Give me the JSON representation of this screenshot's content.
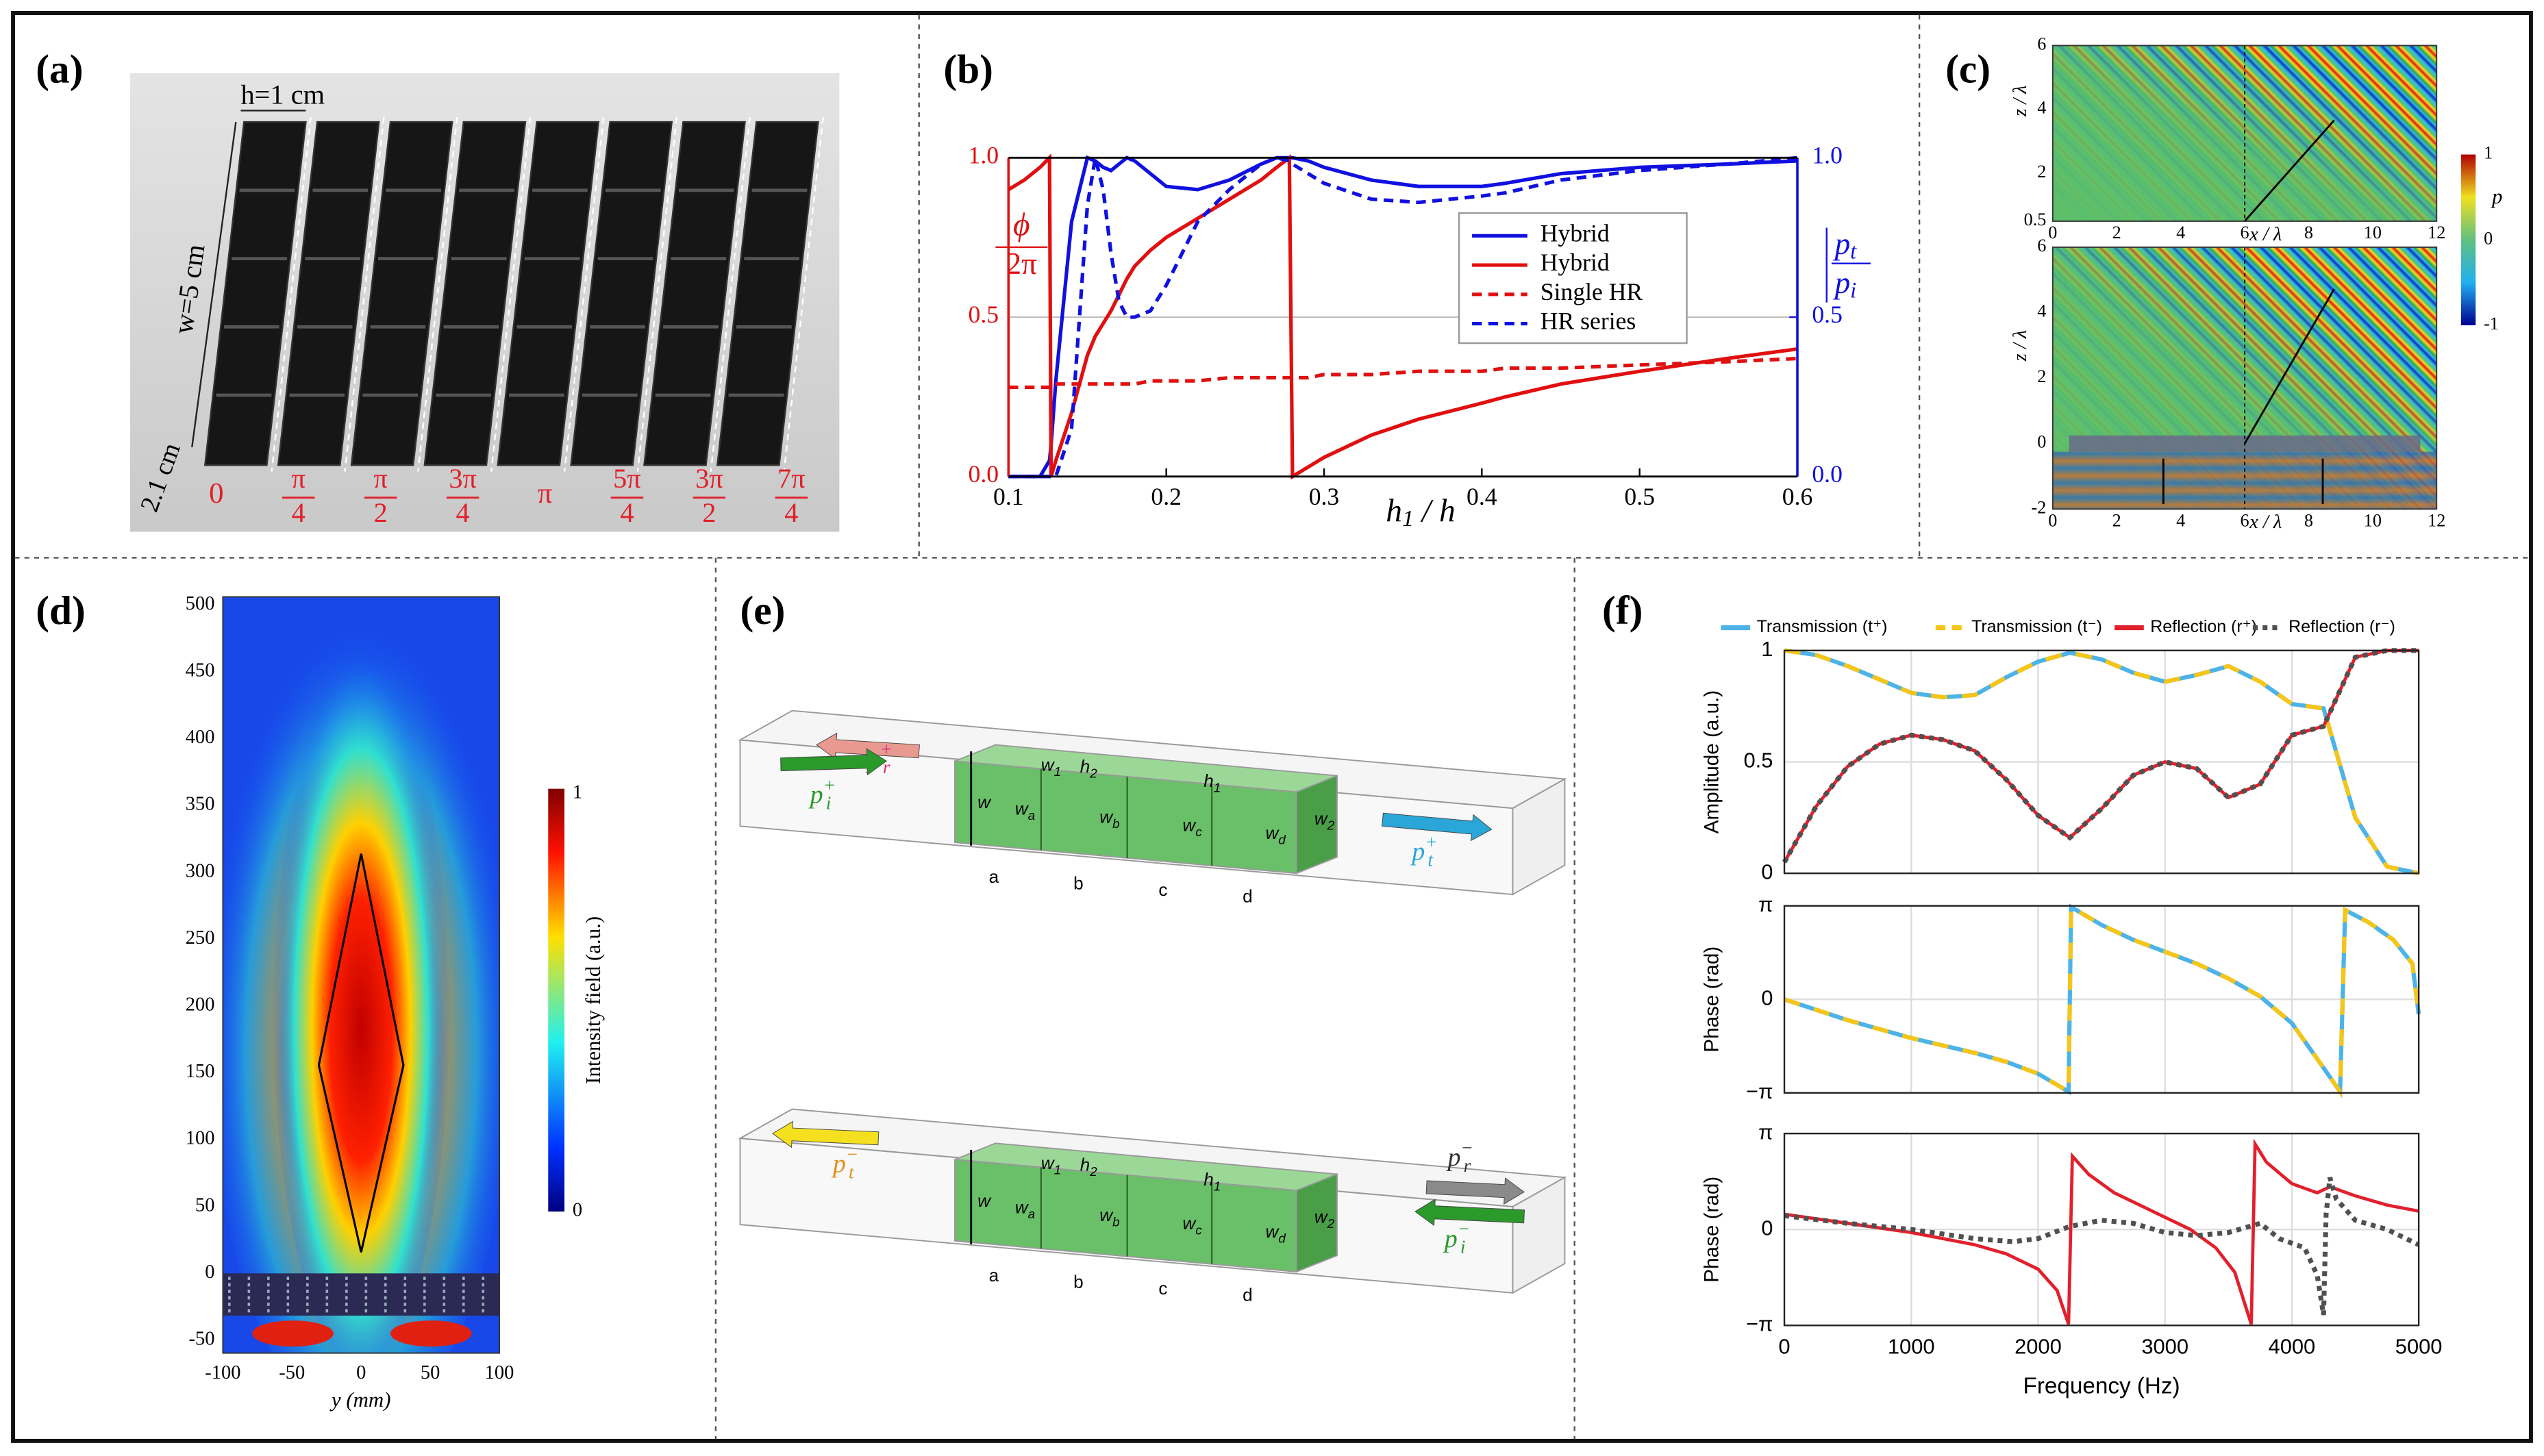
{
  "letters": [
    "(a)",
    "(b)",
    "(c)",
    "(d)",
    "(e)",
    "(f)"
  ],
  "photo": {
    "labels": [
      "h=1 cm",
      "w=5 cm",
      "2.1 cm"
    ],
    "phases": [
      {
        "num": "0"
      },
      {
        "num": "π",
        "den": "4"
      },
      {
        "num": "π",
        "den": "2"
      },
      {
        "num": "3π",
        "den": "4"
      },
      {
        "num": "π"
      },
      {
        "num": "5π",
        "den": "4"
      },
      {
        "num": "3π",
        "den": "2"
      },
      {
        "num": "7π",
        "den": "4"
      }
    ]
  },
  "field_maps": {
    "xticks": [
      0,
      2,
      4,
      6,
      8,
      10,
      12
    ],
    "top_zticks": [
      0.5,
      2,
      4,
      6
    ],
    "bottom_zticks": [
      -2,
      0,
      2,
      4,
      6
    ],
    "xlabel": "x / λ",
    "zlabel": "z / λ",
    "colorbar_ticks": [
      1,
      0,
      -1
    ],
    "colorbar_label": "p"
  },
  "focus_map": {
    "yticks": [
      -50,
      0,
      50,
      100,
      150,
      200,
      250,
      300,
      350,
      400,
      450,
      500
    ],
    "xticks": [
      -100,
      -50,
      0,
      50,
      100
    ],
    "xlabel": "y (mm)",
    "colorbar_ticks": [
      1,
      0
    ],
    "colorbar_label": "Intensity  field (a.u.)"
  },
  "diagrams": [
    {
      "waves": [
        {
          "base": "p",
          "sub": "r",
          "sup": "+",
          "color": "#d8307a"
        },
        {
          "base": "p",
          "sub": "i",
          "sup": "+",
          "color": "#2a9a2a"
        },
        {
          "base": "p",
          "sub": "t",
          "sup": "+",
          "color": "#2aa7d8"
        }
      ],
      "dims": [
        {
          "base": "w"
        },
        {
          "base": "w",
          "sub": "1"
        },
        {
          "base": "h",
          "sub": "2"
        },
        {
          "base": "h",
          "sub": "1"
        },
        {
          "base": "w",
          "sub": "a"
        },
        {
          "base": "w",
          "sub": "b"
        },
        {
          "base": "w",
          "sub": "c"
        },
        {
          "base": "w",
          "sub": "d"
        },
        {
          "base": "w",
          "sub": "2"
        }
      ],
      "cells": [
        "a",
        "b",
        "c",
        "d"
      ]
    },
    {
      "waves": [
        {
          "base": "p",
          "sub": "t",
          "sup": "−",
          "color": "#e09020"
        },
        {
          "base": "p",
          "sub": "r",
          "sup": "−",
          "color": "#333333"
        },
        {
          "base": "p",
          "sub": "i",
          "sup": "−",
          "color": "#2a9a2a"
        }
      ],
      "dims": [
        {
          "base": "w"
        },
        {
          "base": "w",
          "sub": "1"
        },
        {
          "base": "h",
          "sub": "2"
        },
        {
          "base": "h",
          "sub": "1"
        },
        {
          "base": "w",
          "sub": "a"
        },
        {
          "base": "w",
          "sub": "b"
        },
        {
          "base": "w",
          "sub": "c"
        },
        {
          "base": "w",
          "sub": "d"
        },
        {
          "base": "w",
          "sub": "2"
        }
      ],
      "cells": [
        "a",
        "b",
        "c",
        "d"
      ]
    }
  ],
  "chart_data": [
    {
      "type": "line",
      "x": [
        0.1,
        0.11,
        0.12,
        0.126,
        0.127,
        0.13,
        0.14,
        0.15,
        0.155,
        0.16,
        0.165,
        0.17,
        0.175,
        0.18,
        0.19,
        0.2,
        0.22,
        0.24,
        0.26,
        0.27,
        0.278,
        0.28,
        0.29,
        0.3,
        0.33,
        0.36,
        0.4,
        0.415,
        0.45,
        0.5,
        0.555,
        0.6
      ],
      "xlim": [
        0.1,
        0.6
      ],
      "xticks": [
        0.1,
        0.2,
        0.3,
        0.4,
        0.5,
        0.6
      ],
      "xlabel": {
        "base": "h",
        "sub": "1",
        "tail": " / h"
      },
      "ylabel": {
        "num": "ϕ",
        "den": "2π"
      },
      "y2label": {
        "num": {
          "base": "p",
          "sub": "t"
        },
        "den": {
          "base": "p",
          "sub": "i"
        }
      },
      "ylim": [
        0,
        1
      ],
      "yticks": [
        {
          "value": 0,
          "label": "0.0"
        },
        {
          "value": 0.5,
          "label": "0.5"
        },
        {
          "value": 1,
          "label": "1.0"
        }
      ],
      "y2lim": [
        0,
        1
      ],
      "y2ticks": [
        {
          "value": 0,
          "label": "0.0"
        },
        {
          "value": 0.5,
          "label": "0.5"
        },
        {
          "value": 1,
          "label": "1.0"
        }
      ],
      "legend": "center right",
      "series": [
        {
          "name": "Hybrid",
          "color": "#1010e0",
          "linestyle": "solid",
          "axis": "y2",
          "values": [
            0,
            0,
            0,
            0.05,
            0.1,
            0.3,
            0.8,
            1.0,
            0.99,
            0.97,
            0.96,
            0.98,
            1.0,
            0.99,
            0.95,
            0.91,
            0.9,
            0.93,
            0.98,
            1.0,
            1.0,
            1.0,
            0.99,
            0.97,
            0.93,
            0.91,
            0.91,
            0.92,
            0.95,
            0.97,
            0.98,
            0.99
          ]
        },
        {
          "name": "Hybrid",
          "color": "#e01010",
          "linestyle": "solid",
          "axis": "y",
          "values": [
            0.9,
            0.93,
            0.97,
            1.0,
            0,
            0.05,
            0.2,
            0.38,
            0.44,
            0.48,
            0.52,
            0.57,
            0.62,
            0.66,
            0.71,
            0.75,
            0.81,
            0.87,
            0.93,
            0.97,
            1.0,
            0,
            0.03,
            0.06,
            0.13,
            0.18,
            0.23,
            0.25,
            0.29,
            0.33,
            0.37,
            0.4
          ]
        },
        {
          "name": "Single HR",
          "color": "#e01010",
          "linestyle": "dashed",
          "axis": "y",
          "values": [
            0.28,
            0.28,
            0.28,
            0.28,
            0.29,
            0.29,
            0.29,
            0.29,
            0.29,
            0.29,
            0.29,
            0.29,
            0.29,
            0.29,
            0.3,
            0.3,
            0.3,
            0.31,
            0.31,
            0.31,
            0.31,
            0.31,
            0.31,
            0.32,
            0.32,
            0.33,
            0.33,
            0.34,
            0.34,
            0.35,
            0.36,
            0.37
          ]
        },
        {
          "name": "HR series",
          "color": "#1010e0",
          "linestyle": "dashed",
          "axis": "y2",
          "values": [
            0,
            0,
            0,
            0,
            0,
            0,
            0.15,
            0.85,
            1.0,
            0.9,
            0.7,
            0.55,
            0.5,
            0.5,
            0.52,
            0.6,
            0.8,
            0.9,
            0.98,
            1.0,
            0.99,
            0.98,
            0.95,
            0.92,
            0.87,
            0.86,
            0.88,
            0.89,
            0.93,
            0.96,
            0.98,
            1.0
          ]
        }
      ]
    },
    {
      "type": "line",
      "xlim": [
        0,
        5000
      ],
      "xticks": [
        0,
        1000,
        2000,
        3000,
        4000,
        5000
      ],
      "xlabel": "Frequency (Hz)",
      "grid": true,
      "legend": "top",
      "series": [
        {
          "name": "Transmission (t⁺)",
          "color": "#4db3e6",
          "linestyle": "solid"
        },
        {
          "name": "Transmission (t⁻)",
          "color": "#f5c518",
          "linestyle": "dashed"
        },
        {
          "name": "Reflection (r⁺)",
          "color": "#e2202c",
          "linestyle": "solid"
        },
        {
          "name": "Reflection (r⁻)",
          "color": "#505050",
          "linestyle": "dotted"
        }
      ],
      "subplots": [
        {
          "ylabel": "Amplitude (a.u.)",
          "ylim": [
            0,
            1
          ],
          "yticks": [
            0,
            0.5,
            1
          ],
          "curves": [
            {
              "x": [
                0,
                250,
                500,
                750,
                1000,
                1250,
                1500,
                1750,
                2000,
                2250,
                2500,
                2750,
                3000,
                3250,
                3500,
                3750,
                4000,
                4250,
                4500,
                4750,
                5000
              ],
              "values": [
                1.0,
                0.98,
                0.93,
                0.87,
                0.81,
                0.79,
                0.8,
                0.88,
                0.95,
                0.99,
                0.96,
                0.9,
                0.86,
                0.89,
                0.93,
                0.86,
                0.76,
                0.74,
                0.25,
                0.03,
                0
              ]
            },
            {
              "x": [
                0,
                250,
                500,
                750,
                1000,
                1250,
                1500,
                1750,
                2000,
                2250,
                2500,
                2750,
                3000,
                3250,
                3500,
                3750,
                4000,
                4250,
                4500,
                4750,
                5000
              ],
              "values": [
                1.0,
                0.98,
                0.93,
                0.87,
                0.81,
                0.79,
                0.8,
                0.88,
                0.95,
                0.99,
                0.96,
                0.9,
                0.86,
                0.89,
                0.93,
                0.86,
                0.76,
                0.74,
                0.25,
                0.03,
                0
              ]
            },
            {
              "x": [
                0,
                250,
                500,
                750,
                1000,
                1250,
                1500,
                1750,
                2000,
                2250,
                2500,
                2750,
                3000,
                3250,
                3500,
                3750,
                4000,
                4250,
                4500,
                4750,
                5000
              ],
              "values": [
                0.05,
                0.3,
                0.48,
                0.58,
                0.62,
                0.6,
                0.55,
                0.42,
                0.26,
                0.16,
                0.29,
                0.44,
                0.5,
                0.47,
                0.34,
                0.4,
                0.62,
                0.66,
                0.97,
                1.0,
                1.0
              ]
            },
            {
              "x": [
                0,
                250,
                500,
                750,
                1000,
                1250,
                1500,
                1750,
                2000,
                2250,
                2500,
                2750,
                3000,
                3250,
                3500,
                3750,
                4000,
                4250,
                4500,
                4750,
                5000
              ],
              "values": [
                0.05,
                0.3,
                0.48,
                0.58,
                0.62,
                0.6,
                0.55,
                0.42,
                0.26,
                0.16,
                0.29,
                0.44,
                0.5,
                0.47,
                0.34,
                0.4,
                0.62,
                0.66,
                0.97,
                1.0,
                1.0
              ]
            }
          ]
        },
        {
          "ylabel": "Phase (rad)",
          "ylim": [
            -3.1416,
            3.1416
          ],
          "yticks": [
            {
              "value": -3.1416,
              "label": "−π"
            },
            0,
            {
              "value": 3.1416,
              "label": "π"
            }
          ],
          "curves": [
            {
              "x": [
                0,
                250,
                500,
                750,
                1000,
                1250,
                1500,
                1750,
                2000,
                2240,
                2260,
                2500,
                2750,
                3000,
                3250,
                3500,
                3750,
                4000,
                4200,
                4380,
                4420,
                4600,
                4800,
                4950,
                5000
              ],
              "values": [
                0,
                -0.35,
                -0.7,
                -1.0,
                -1.3,
                -1.55,
                -1.8,
                -2.1,
                -2.5,
                -3.1,
                3.1,
                2.5,
                2.0,
                1.6,
                1.2,
                0.7,
                0.1,
                -0.8,
                -2.0,
                -3.1,
                3.0,
                2.6,
                2.0,
                1.2,
                -0.5
              ]
            },
            {
              "x": [
                0,
                250,
                500,
                750,
                1000,
                1250,
                1500,
                1750,
                2000,
                2240,
                2260,
                2500,
                2750,
                3000,
                3250,
                3500,
                3750,
                4000,
                4200,
                4380,
                4420,
                4600,
                4800,
                4950,
                5000
              ],
              "values": [
                0,
                -0.35,
                -0.7,
                -1.0,
                -1.3,
                -1.55,
                -1.8,
                -2.1,
                -2.5,
                -3.1,
                3.1,
                2.5,
                2.0,
                1.6,
                1.2,
                0.7,
                0.1,
                -0.8,
                -2.0,
                -3.1,
                3.0,
                2.6,
                2.0,
                1.2,
                -0.5
              ]
            },
            null,
            null
          ]
        },
        {
          "ylabel": "Phase (rad)",
          "ylim": [
            -3.1416,
            3.1416
          ],
          "yticks": [
            {
              "value": -3.1416,
              "label": "−π"
            },
            0,
            {
              "value": 3.1416,
              "label": "π"
            }
          ],
          "curves": [
            null,
            null,
            {
              "x": [
                0,
                250,
                500,
                750,
                1000,
                1250,
                1500,
                1750,
                2000,
                2150,
                2240,
                2270,
                2400,
                2600,
                2800,
                3000,
                3200,
                3400,
                3550,
                3680,
                3710,
                3800,
                4000,
                4200,
                4300,
                4500,
                4750,
                5000
              ],
              "values": [
                0.5,
                0.35,
                0.2,
                0.05,
                -0.1,
                -0.3,
                -0.5,
                -0.8,
                -1.3,
                -2.0,
                -3.1,
                2.4,
                1.8,
                1.2,
                0.8,
                0.4,
                0,
                -0.6,
                -1.4,
                -3.1,
                2.8,
                2.2,
                1.5,
                1.2,
                1.4,
                1.1,
                0.8,
                0.6
              ]
            },
            {
              "x": [
                0,
                500,
                1000,
                1500,
                1800,
                2000,
                2250,
                2500,
                2750,
                3000,
                3250,
                3500,
                3750,
                3900,
                4100,
                4200,
                4250,
                4270,
                4300,
                4350,
                4500,
                4750,
                5000
              ],
              "values": [
                0.45,
                0.2,
                0,
                -0.3,
                -0.4,
                -0.3,
                0.1,
                0.3,
                0.2,
                -0.1,
                -0.2,
                -0.1,
                0.2,
                -0.3,
                -0.6,
                -1.5,
                -2.8,
                0.5,
                1.7,
                1.0,
                0.3,
                0,
                -0.5
              ]
            }
          ]
        }
      ]
    }
  ]
}
